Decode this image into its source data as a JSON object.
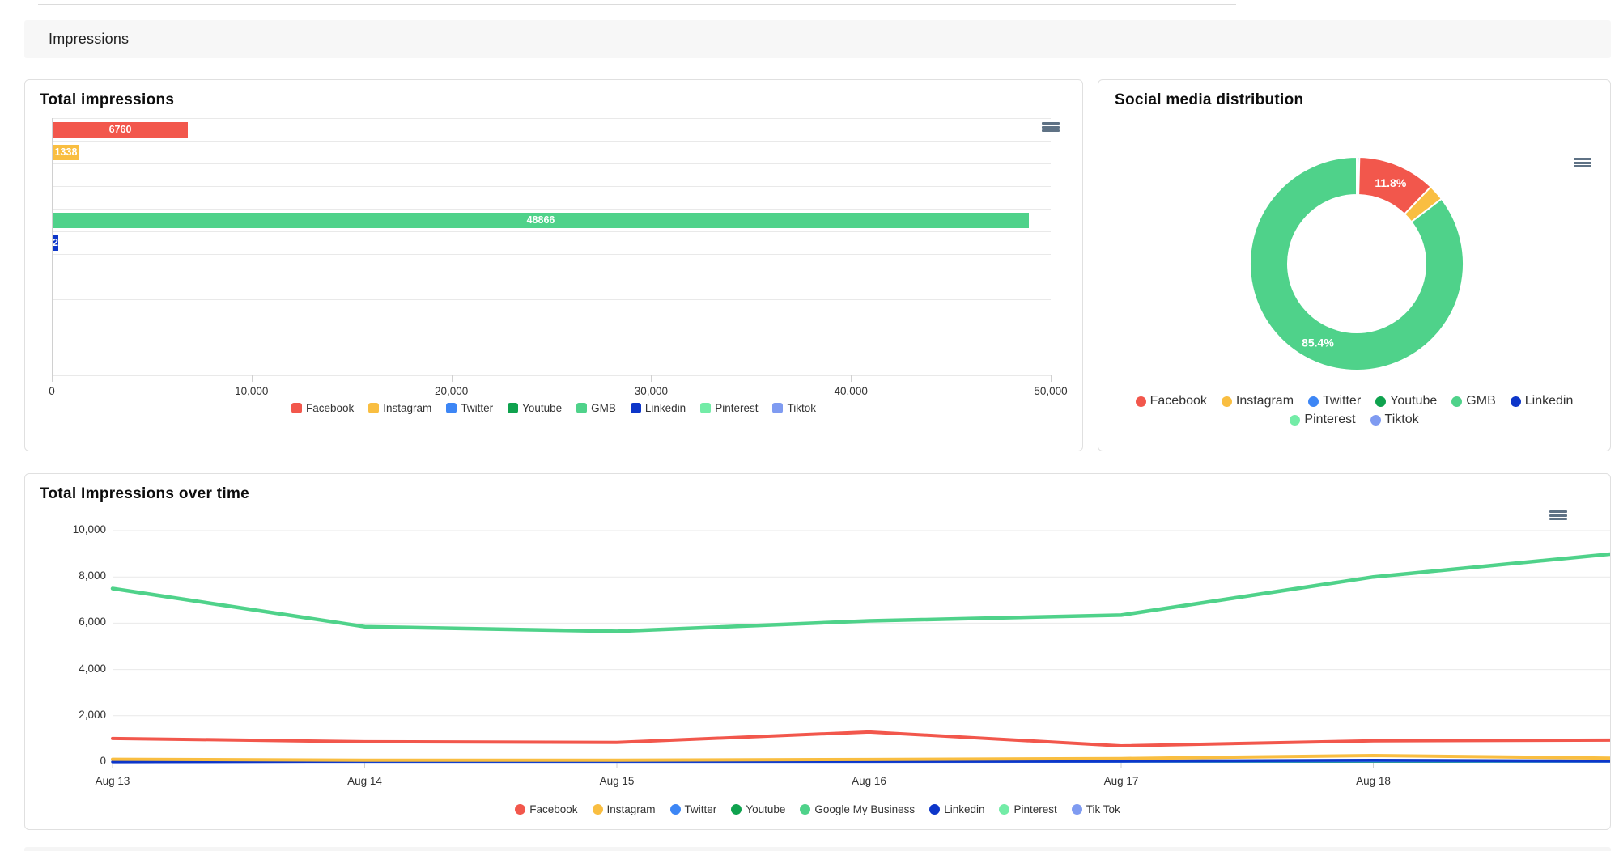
{
  "header": {
    "title": "Impressions"
  },
  "colors": {
    "facebook": "#F2574C",
    "instagram": "#F9BE41",
    "twitter": "#3D86F5",
    "youtube": "#0FA24E",
    "gmb": "#4FD28A",
    "linkedin": "#0D36C9",
    "pinterest": "#73ECA7",
    "tiktok": "#7F9BF1",
    "grid": "#E9E9E9",
    "axis_line": "#D0D0D0",
    "text": "#333333",
    "menu_icon": "#5F7285"
  },
  "bar_card": {
    "title": "Total impressions",
    "x_ticks": [
      "0",
      "10,000",
      "20,000",
      "30,000",
      "40,000",
      "50,000"
    ],
    "legend": [
      {
        "label": "Facebook",
        "color_key": "facebook"
      },
      {
        "label": "Instagram",
        "color_key": "instagram"
      },
      {
        "label": "Twitter",
        "color_key": "twitter"
      },
      {
        "label": "Youtube",
        "color_key": "youtube"
      },
      {
        "label": "GMB",
        "color_key": "gmb"
      },
      {
        "label": "Linkedin",
        "color_key": "linkedin"
      },
      {
        "label": "Pinterest",
        "color_key": "pinterest"
      },
      {
        "label": "Tiktok",
        "color_key": "tiktok"
      }
    ]
  },
  "donut_card": {
    "title": "Social media distribution",
    "legend_rows": [
      [
        {
          "label": "Facebook",
          "color_key": "facebook"
        },
        {
          "label": "Instagram",
          "color_key": "instagram"
        },
        {
          "label": "Twitter",
          "color_key": "twitter"
        },
        {
          "label": "Youtube",
          "color_key": "youtube"
        },
        {
          "label": "GMB",
          "color_key": "gmb"
        },
        {
          "label": "Linkedin",
          "color_key": "linkedin"
        }
      ],
      [
        {
          "label": "Pinterest",
          "color_key": "pinterest"
        },
        {
          "label": "Tiktok",
          "color_key": "tiktok"
        }
      ]
    ]
  },
  "line_card": {
    "title": "Total Impressions over time",
    "y_ticks": [
      "0",
      "2,000",
      "4,000",
      "6,000",
      "8,000",
      "10,000"
    ],
    "x_labels": [
      "Aug 13",
      "Aug 14",
      "Aug 15",
      "Aug 16",
      "Aug 17",
      "Aug 18"
    ],
    "legend": [
      {
        "label": "Facebook",
        "color_key": "facebook"
      },
      {
        "label": "Instagram",
        "color_key": "instagram"
      },
      {
        "label": "Twitter",
        "color_key": "twitter"
      },
      {
        "label": "Youtube",
        "color_key": "youtube"
      },
      {
        "label": "Google My Business",
        "color_key": "gmb"
      },
      {
        "label": "Linkedin",
        "color_key": "linkedin"
      },
      {
        "label": "Pinterest",
        "color_key": "pinterest"
      },
      {
        "label": "Tik Tok",
        "color_key": "tiktok"
      }
    ]
  },
  "chart_data": [
    {
      "type": "bar",
      "title": "Total impressions",
      "orientation": "horizontal",
      "categories": [
        "Facebook",
        "Instagram",
        "Twitter",
        "Youtube",
        "GMB",
        "Linkedin",
        "Pinterest",
        "Tiktok"
      ],
      "color_keys": [
        "facebook",
        "instagram",
        "twitter",
        "youtube",
        "gmb",
        "linkedin",
        "pinterest",
        "tiktok"
      ],
      "values": [
        6760,
        1338,
        0,
        0,
        48866,
        2,
        0,
        0
      ],
      "bar_labels": [
        "6760",
        "1338",
        "",
        "",
        "48866",
        "2",
        "",
        ""
      ],
      "xlabel": "",
      "ylabel": "",
      "xlim": [
        0,
        50000
      ],
      "x_tick_values": [
        0,
        10000,
        20000,
        30000,
        40000,
        50000
      ],
      "grid": true,
      "legend_position": "bottom"
    },
    {
      "type": "pie",
      "title": "Social media distribution",
      "donut": true,
      "start_at": "12-oclock",
      "direction": "clockwise",
      "slices": [
        {
          "name": "Twitter",
          "color_key": "twitter",
          "pct": 0.4,
          "label": ""
        },
        {
          "name": "Facebook",
          "color_key": "facebook",
          "pct": 11.8,
          "label": "11.8%"
        },
        {
          "name": "Instagram",
          "color_key": "instagram",
          "pct": 2.4,
          "label": ""
        },
        {
          "name": "GMB",
          "color_key": "gmb",
          "pct": 85.4,
          "label": "85.4%"
        }
      ],
      "legend_position": "bottom"
    },
    {
      "type": "line",
      "title": "Total Impressions over time",
      "x": [
        "Aug 13",
        "Aug 14",
        "Aug 15",
        "Aug 16",
        "Aug 17",
        "Aug 18",
        ""
      ],
      "ylim": [
        0,
        10000
      ],
      "y_tick_values": [
        0,
        2000,
        4000,
        6000,
        8000,
        10000
      ],
      "grid": true,
      "legend_position": "bottom",
      "series": [
        {
          "name": "Google My Business",
          "color_key": "gmb",
          "values": [
            7500,
            5850,
            5650,
            6100,
            6350,
            8000,
            9050
          ]
        },
        {
          "name": "Facebook",
          "color_key": "facebook",
          "values": [
            1020,
            880,
            850,
            1300,
            700,
            920,
            950
          ]
        },
        {
          "name": "Instagram",
          "color_key": "instagram",
          "values": [
            120,
            80,
            80,
            110,
            150,
            280,
            160
          ]
        },
        {
          "name": "Linkedin",
          "color_key": "linkedin",
          "values": [
            5,
            30,
            30,
            30,
            40,
            80,
            40
          ]
        },
        {
          "name": "Twitter",
          "color_key": "twitter",
          "values": [
            10,
            10,
            10,
            10,
            15,
            30,
            15
          ]
        },
        {
          "name": "Tik Tok",
          "color_key": "tiktok",
          "values": [
            0,
            10,
            10,
            10,
            20,
            40,
            20
          ]
        },
        {
          "name": "Youtube",
          "color_key": "youtube",
          "values": [
            0,
            0,
            0,
            0,
            0,
            0,
            0
          ]
        },
        {
          "name": "Pinterest",
          "color_key": "pinterest",
          "values": [
            0,
            0,
            0,
            0,
            0,
            0,
            0
          ]
        }
      ]
    }
  ]
}
